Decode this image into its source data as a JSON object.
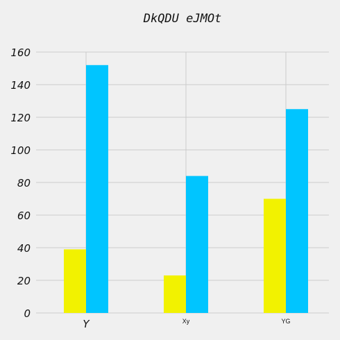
{
  "chart_data": {
    "type": "bar",
    "title": "DkQDU eJMOt",
    "xlabel": "",
    "ylabel": "",
    "categories": [
      "Y",
      "Xy",
      "YG"
    ],
    "series": [
      {
        "color": "#f2f200",
        "values": [
          39,
          23,
          70
        ]
      },
      {
        "color": "#00c5ff",
        "values": [
          152,
          84,
          125
        ]
      }
    ],
    "ylim": [
      0,
      160
    ],
    "yticks": [
      0,
      20,
      40,
      60,
      80,
      100,
      120,
      140,
      160
    ],
    "grid": true,
    "legend": "none"
  }
}
